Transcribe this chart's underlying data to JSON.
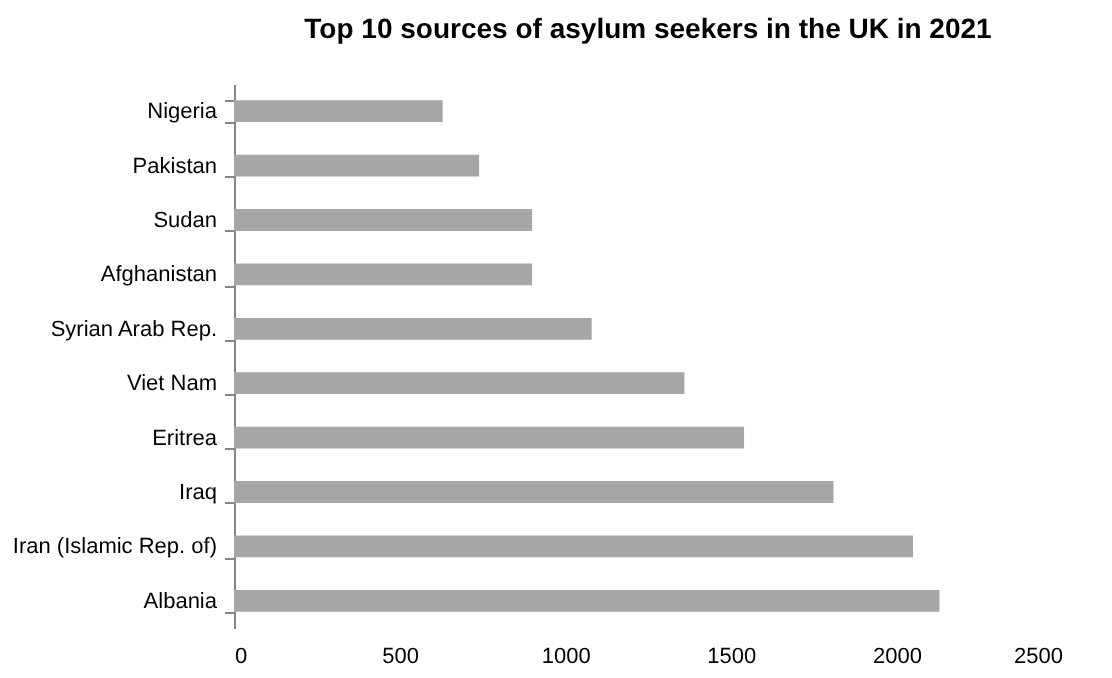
{
  "chart_data": {
    "type": "bar",
    "orientation": "horizontal",
    "title": "Top 10 sources of asylum seekers in the UK in 2021",
    "categories": [
      "Nigeria",
      "Pakistan",
      "Sudan",
      "Afghanistan",
      "Syrian Arab Rep.",
      "Viet Nam",
      "Eritrea",
      "Iraq",
      "Iran (Islamic Rep. of)",
      "Albania"
    ],
    "values": [
      630,
      740,
      900,
      900,
      1080,
      1360,
      1540,
      1810,
      2050,
      2130
    ],
    "color": "#a6a6a6",
    "xlim": [
      0,
      2500
    ],
    "xticks": [
      0,
      500,
      1000,
      1500,
      2000,
      2500
    ],
    "grid": false
  }
}
